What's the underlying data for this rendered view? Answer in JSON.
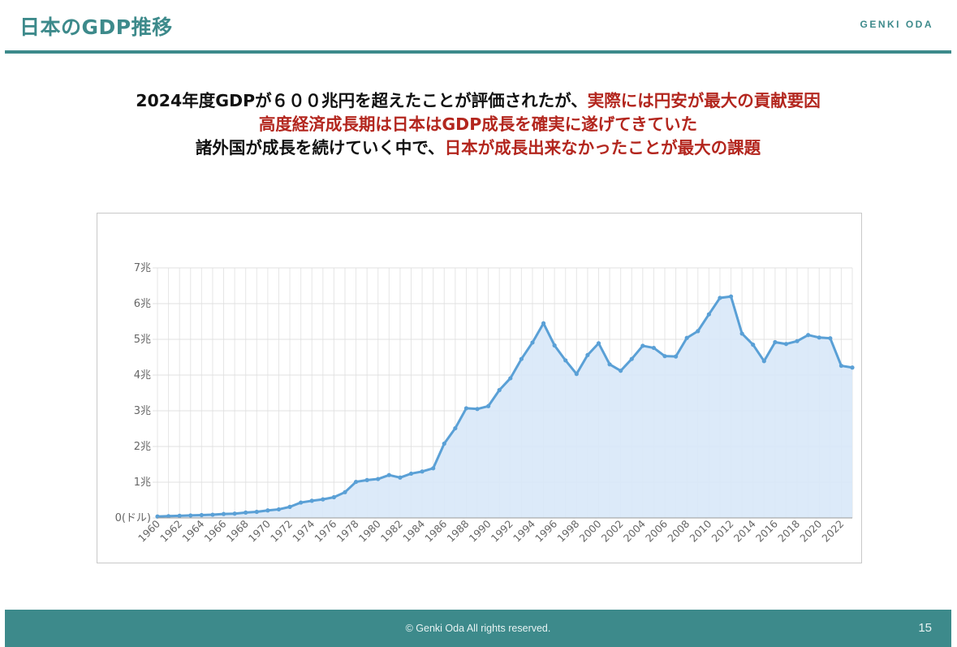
{
  "header": {
    "title": "日本のGDP推移",
    "brand": "GENKI ODA"
  },
  "message": {
    "line1_black": "2024年度GDPが６００兆円を超えたことが評価されたが、",
    "line1_red": "実際には円安が最大の貢献要因",
    "line2_red": "高度経済成長期は日本はGDP成長を確実に遂げてきていた",
    "line3_black": "諸外国が成長を続けていく中で、",
    "line3_red": "日本が成長出来なかったことが最大の課題"
  },
  "footer": {
    "copyright": "© Genki Oda All rights reserved.",
    "page_number": "15"
  },
  "colors": {
    "accent": "#3d8a8b",
    "highlight_red": "#b3261e",
    "series_line": "#5aa0d6",
    "series_fill": "#d8e8f8"
  },
  "chart_data": {
    "type": "area",
    "title": "",
    "xlabel": "",
    "ylabel": "",
    "ylim": [
      0,
      7
    ],
    "y_ticks": [
      {
        "value": 0,
        "label": "0(ドル)"
      },
      {
        "value": 1,
        "label": "1兆"
      },
      {
        "value": 2,
        "label": "2兆"
      },
      {
        "value": 3,
        "label": "3兆"
      },
      {
        "value": 4,
        "label": "4兆"
      },
      {
        "value": 5,
        "label": "5兆"
      },
      {
        "value": 6,
        "label": "6兆"
      },
      {
        "value": 7,
        "label": "7兆"
      }
    ],
    "x_tick_labels": [
      "1960",
      "1962",
      "1964",
      "1966",
      "1968",
      "1970",
      "1972",
      "1974",
      "1976",
      "1978",
      "1980",
      "1982",
      "1984",
      "1986",
      "1988",
      "1990",
      "1992",
      "1994",
      "1996",
      "1998",
      "2000",
      "2002",
      "2004",
      "2006",
      "2008",
      "2010",
      "2012",
      "2014",
      "2016",
      "2018",
      "2020",
      "2022"
    ],
    "grid": true,
    "legend": "none",
    "series": [
      {
        "name": "",
        "x": [
          1960,
          1961,
          1962,
          1963,
          1964,
          1965,
          1966,
          1967,
          1968,
          1969,
          1970,
          1971,
          1972,
          1973,
          1974,
          1975,
          1976,
          1977,
          1978,
          1979,
          1980,
          1981,
          1982,
          1983,
          1984,
          1985,
          1986,
          1987,
          1988,
          1989,
          1990,
          1991,
          1992,
          1993,
          1994,
          1995,
          1996,
          1997,
          1998,
          1999,
          2000,
          2001,
          2002,
          2003,
          2004,
          2005,
          2006,
          2007,
          2008,
          2009,
          2010,
          2011,
          2012,
          2013,
          2014,
          2015,
          2016,
          2017,
          2018,
          2019,
          2020,
          2021,
          2022,
          2023
        ],
        "values": [
          0.04,
          0.05,
          0.06,
          0.07,
          0.08,
          0.09,
          0.11,
          0.12,
          0.15,
          0.17,
          0.21,
          0.24,
          0.31,
          0.43,
          0.48,
          0.52,
          0.58,
          0.72,
          1.01,
          1.06,
          1.09,
          1.2,
          1.13,
          1.24,
          1.3,
          1.39,
          2.08,
          2.51,
          3.07,
          3.05,
          3.13,
          3.58,
          3.91,
          4.45,
          4.91,
          5.45,
          4.83,
          4.41,
          4.03,
          4.56,
          4.89,
          4.3,
          4.12,
          4.45,
          4.82,
          4.76,
          4.53,
          4.52,
          5.04,
          5.23,
          5.7,
          6.16,
          6.2,
          5.16,
          4.85,
          4.39,
          4.92,
          4.87,
          4.95,
          5.12,
          5.05,
          5.03,
          4.26,
          4.21
        ]
      }
    ]
  }
}
